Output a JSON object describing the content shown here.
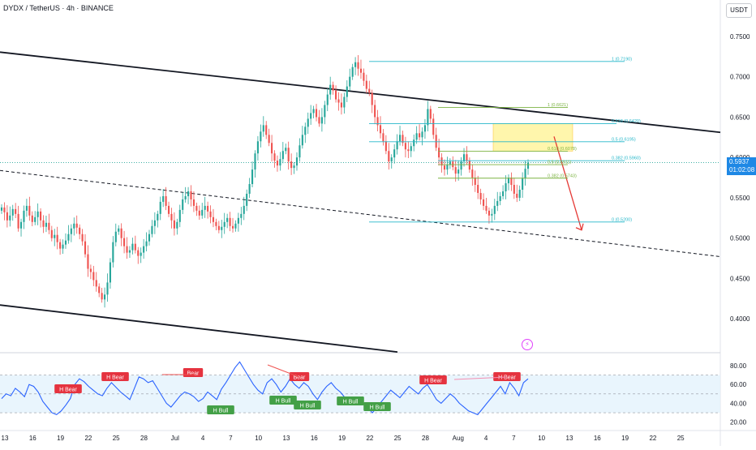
{
  "header": {
    "title": "DYDX / TetherUS · 4h · BINANCE",
    "unit_label": "USDT"
  },
  "price_tag": {
    "price": "0.5937",
    "countdown": "01:02:08",
    "color": "#1e88e5"
  },
  "colors": {
    "up": "#26a69a",
    "down": "#ef5350",
    "fib_blue": "#26b7c9",
    "fib_green": "#7cb342",
    "zone": "#fff59d",
    "rsi_line": "#2962ff",
    "bear_badge": "#e5333f",
    "bull_badge": "#43a047"
  },
  "icons": {
    "alert": "lightning-bolt-icon"
  },
  "chart_data": {
    "type": "candlestick",
    "title": "DYDX / TetherUS · 4h · BINANCE",
    "price_axis": {
      "range": [
        0.36,
        0.765
      ],
      "ticks": [
        "0.7500",
        "0.7000",
        "0.6500",
        "0.6000",
        "0.5500",
        "0.5000",
        "0.4500",
        "0.4000"
      ],
      "current_price": 0.5937
    },
    "x_axis": {
      "ticks": [
        "13",
        "16",
        "19",
        "22",
        "25",
        "28",
        "Jul",
        "4",
        "7",
        "10",
        "13",
        "16",
        "19",
        "22",
        "25",
        "28",
        "Aug",
        "4",
        "7",
        "10",
        "13",
        "16",
        "19",
        "22",
        "25"
      ]
    },
    "price_path": [
      [
        0.538,
        0.532,
        0.522,
        0.528,
        0.536,
        0.53,
        0.512,
        0.52,
        0.534,
        0.54,
        0.528,
        0.52,
        0.526,
        0.533,
        0.522,
        0.514,
        0.519,
        0.51,
        0.5,
        0.504,
        0.495,
        0.487,
        0.492,
        0.497,
        0.505,
        0.512,
        0.518,
        0.513
      ],
      [
        0.505,
        0.496,
        0.48,
        0.462,
        0.458,
        0.448,
        0.44,
        0.432,
        0.424,
        0.43,
        0.445,
        0.47,
        0.495,
        0.508,
        0.512,
        0.5,
        0.49,
        0.482,
        0.485,
        0.493,
        0.485,
        0.478,
        0.482,
        0.49
      ],
      [
        0.496,
        0.505,
        0.515,
        0.522,
        0.53,
        0.545,
        0.552,
        0.54,
        0.53,
        0.522,
        0.512,
        0.52,
        0.535,
        0.548,
        0.552,
        0.558,
        0.548,
        0.54,
        0.534,
        0.528,
        0.535,
        0.54,
        0.533,
        0.526,
        0.52,
        0.515,
        0.51,
        0.514,
        0.52,
        0.525,
        0.515,
        0.512,
        0.518,
        0.525,
        0.53,
        0.54,
        0.555
      ],
      [
        0.567,
        0.585,
        0.605,
        0.62,
        0.632,
        0.64,
        0.628,
        0.618,
        0.605,
        0.596,
        0.59,
        0.598,
        0.608,
        0.612,
        0.595,
        0.587,
        0.59,
        0.6,
        0.615,
        0.628,
        0.638,
        0.648,
        0.655,
        0.66,
        0.65,
        0.642,
        0.65,
        0.665,
        0.678,
        0.69,
        0.683,
        0.672,
        0.668,
        0.662,
        0.675,
        0.688,
        0.7,
        0.712,
        0.718,
        0.71,
        0.705,
        0.695,
        0.685,
        0.68,
        0.665,
        0.65,
        0.64,
        0.63,
        0.62,
        0.608,
        0.595,
        0.6,
        0.61
      ],
      [
        0.62,
        0.628,
        0.618,
        0.61,
        0.608,
        0.614,
        0.622,
        0.63,
        0.625,
        0.632,
        0.64,
        0.66,
        0.648,
        0.628,
        0.612,
        0.6,
        0.59,
        0.585,
        0.591,
        0.595,
        0.588,
        0.58,
        0.585,
        0.595,
        0.604,
        0.596,
        0.585,
        0.575,
        0.566,
        0.556,
        0.548,
        0.54,
        0.534,
        0.528,
        0.53,
        0.54,
        0.546,
        0.552,
        0.558,
        0.568,
        0.575,
        0.566,
        0.555,
        0.55,
        0.56,
        0.574,
        0.586,
        0.5937
      ]
    ],
    "channel": {
      "upper": [
        [
          0,
          0.7305
        ],
        [
          932,
          0.6262
        ]
      ],
      "middle_dashed": [
        [
          0,
          0.5838
        ],
        [
          932,
          0.4718
        ]
      ],
      "lower": [
        [
          0,
          0.4171
        ],
        [
          490,
          0.3589
        ]
      ]
    },
    "fibonacci": [
      {
        "label": "1 (0.7190)",
        "value": 0.719,
        "color": "blue"
      },
      {
        "label": "1 (0.6621)",
        "value": 0.6621,
        "color": "green"
      },
      {
        "label": "0.618 (0.6420)",
        "value": 0.642,
        "color": "blue"
      },
      {
        "label": "0.5 (0.6195)",
        "value": 0.6195,
        "color": "blue"
      },
      {
        "label": "0.618 (0.6078)",
        "value": 0.6078,
        "color": "green"
      },
      {
        "label": "0.382 (0.5960)",
        "value": 0.596,
        "color": "blue"
      },
      {
        "label": "0.5 (0.5911)",
        "value": 0.5911,
        "color": "green"
      },
      {
        "label": "0.382 (0.5743)",
        "value": 0.5743,
        "color": "green"
      },
      {
        "label": "0 (0.5200)",
        "value": 0.52,
        "color": "blue"
      }
    ],
    "supply_zone": {
      "top": 0.642,
      "bottom": 0.6078
    },
    "projection": {
      "from": 0.626,
      "to": 0.51
    },
    "rsi": {
      "range": [
        12,
        92
      ],
      "ticks": [
        "80.00",
        "60.00",
        "40.00",
        "20.00"
      ],
      "band": [
        30,
        70
      ],
      "mid": 50,
      "values": [
        45,
        50,
        48,
        56,
        52,
        47,
        60,
        58,
        52,
        42,
        36,
        30,
        28,
        32,
        38,
        45,
        60,
        66,
        63,
        58,
        54,
        50,
        48,
        56,
        62,
        57,
        52,
        48,
        44,
        56,
        68,
        66,
        62,
        64,
        56,
        48,
        40,
        36,
        42,
        48,
        52,
        50,
        47,
        42,
        45,
        52,
        48,
        44,
        55,
        62,
        70,
        78,
        84,
        76,
        68,
        60,
        54,
        50,
        62,
        66,
        60,
        52,
        58,
        66,
        60,
        56,
        62,
        58,
        50,
        44,
        52,
        58,
        62,
        56,
        52,
        46,
        40,
        44,
        46,
        40,
        35,
        30,
        36,
        42,
        48,
        54,
        50,
        46,
        52,
        58,
        54,
        50,
        56,
        60,
        52,
        44,
        40,
        45,
        50,
        46,
        40,
        36,
        32,
        30,
        28,
        34,
        40,
        46,
        52,
        58,
        50,
        62,
        56,
        48,
        62,
        66
      ],
      "divergences": [
        {
          "label": "H Bear",
          "type": "bear"
        },
        {
          "label": "H Bear",
          "type": "bear"
        },
        {
          "label": "Bear",
          "type": "bear"
        },
        {
          "label": "H Bull",
          "type": "bull"
        },
        {
          "label": "Bear",
          "type": "bear"
        },
        {
          "label": "H Bull",
          "type": "bull"
        },
        {
          "label": "H Bull",
          "type": "bull"
        },
        {
          "label": "H Bull",
          "type": "bull"
        },
        {
          "label": "H Bull",
          "type": "bull"
        },
        {
          "label": "H Bear",
          "type": "bear"
        },
        {
          "label": "H Bear",
          "type": "bear"
        }
      ]
    }
  }
}
